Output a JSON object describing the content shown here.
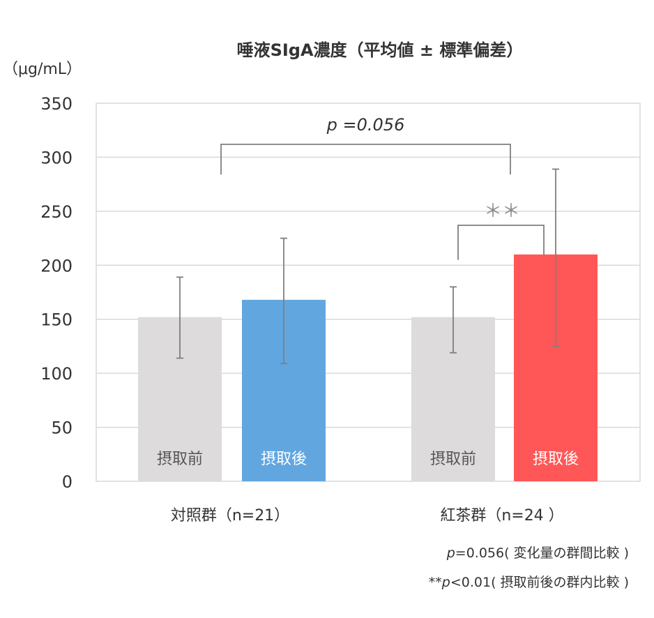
{
  "chart_data": {
    "type": "bar",
    "title": "唾液SIgA濃度（平均値 ± 標準偏差）",
    "ylabel": "（μg/mL）",
    "xlabel": "",
    "ylim": [
      0,
      350
    ],
    "yticks": [
      0,
      50,
      100,
      150,
      200,
      250,
      300,
      350
    ],
    "grid": true,
    "groups": [
      {
        "label": "対照群（n=21）",
        "bars": [
          {
            "label": "摂取前",
            "value": 152,
            "err_low": 114,
            "err_high": 189,
            "color": "#dddbdb",
            "label_color": "#555555"
          },
          {
            "label": "摂取後",
            "value": 168,
            "err_low": 109,
            "err_high": 225,
            "color": "#62a6e0",
            "label_color": "#ffffff"
          }
        ]
      },
      {
        "label": "紅茶群（n=24 ）",
        "bars": [
          {
            "label": "摂取前",
            "value": 152,
            "err_low": 119,
            "err_high": 180,
            "color": "#dddbdb",
            "label_color": "#555555"
          },
          {
            "label": "摂取後",
            "value": 210,
            "err_low": 125,
            "err_high": 289,
            "color": "#ff5757",
            "label_color": "#ffffff"
          }
        ]
      }
    ],
    "annotations": [
      {
        "text": "p =0.056",
        "from": "対照群（n=21）",
        "to": "紅茶群（n=24 ）",
        "level": 312
      },
      {
        "text": "＊＊",
        "from": "紅茶群 摂取前",
        "to": "紅茶群 摂取後",
        "level": 237
      }
    ]
  },
  "notes": {
    "line1_p": "p",
    "line1_rest": "=0.056( 変化量の群間比較 )",
    "line2_prefix": "**",
    "line2_p": "p",
    "line2_rest": "<0.01( 摂取前後の群内比較 )"
  }
}
